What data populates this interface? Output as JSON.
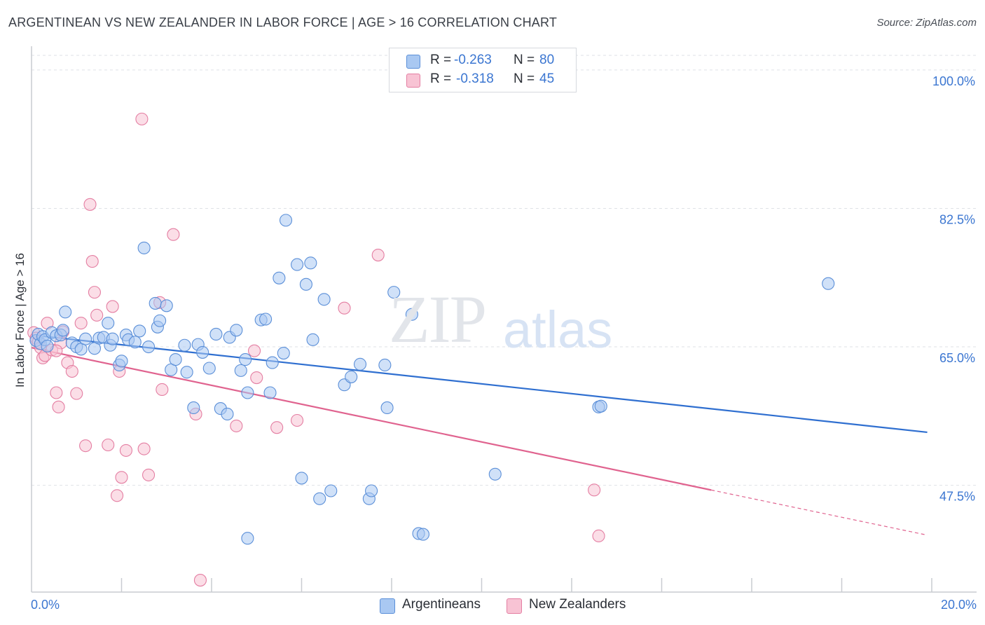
{
  "header": {
    "title": "ARGENTINEAN VS NEW ZEALANDER IN LABOR FORCE | AGE > 16 CORRELATION CHART",
    "source": "Source: ZipAtlas.com"
  },
  "watermark": {
    "zip": "ZIP",
    "atlas": "atlas"
  },
  "legend": {
    "rows": [
      {
        "r_label": "R =",
        "r_value": "-0.263",
        "n_label": "N =",
        "n_value": "80",
        "color": "#a9c8f2",
        "border": "#5b8fd8"
      },
      {
        "r_label": "R =",
        "r_value": "-0.318",
        "n_label": "N =",
        "n_value": "45",
        "color": "#f8c3d4",
        "border": "#e47ea2"
      }
    ]
  },
  "bottom_legend": {
    "items": [
      {
        "label": "Argentineans",
        "color": "#a9c8f2",
        "border": "#5b8fd8"
      },
      {
        "label": "New Zealanders",
        "color": "#f8c3d4",
        "border": "#e47ea2"
      }
    ]
  },
  "chart_data": {
    "type": "scatter",
    "title": "ARGENTINEAN VS NEW ZEALANDER IN LABOR FORCE | AGE > 16 CORRELATION CHART",
    "xlabel": "",
    "ylabel": "In Labor Force | Age > 16",
    "xlim": [
      0,
      20
    ],
    "ylim": [
      34,
      103
    ],
    "x_tick_labels": [
      "0.0%",
      "20.0%"
    ],
    "y_ticks": [
      47.5,
      65.0,
      82.5,
      100.0
    ],
    "y_tick_labels": [
      "47.5%",
      "65.0%",
      "82.5%",
      "100.0%"
    ],
    "grid": true,
    "series": [
      {
        "name": "Argentineans",
        "color": "#5b8fd8",
        "fill": "#a9c8f2",
        "trend": {
          "x": [
            0.0,
            19.9
          ],
          "y": [
            66.5,
            54.2
          ],
          "color": "#2f6fd0"
        },
        "points": [
          [
            0.1,
            65.8
          ],
          [
            0.15,
            66.6
          ],
          [
            0.2,
            65.4
          ],
          [
            0.25,
            66.3
          ],
          [
            0.3,
            65.9
          ],
          [
            0.35,
            65.1
          ],
          [
            0.45,
            66.8
          ],
          [
            0.55,
            66.4
          ],
          [
            0.65,
            66.5
          ],
          [
            0.7,
            67.1
          ],
          [
            0.75,
            69.4
          ],
          [
            0.9,
            65.5
          ],
          [
            1.0,
            65.0
          ],
          [
            1.1,
            64.7
          ],
          [
            1.2,
            66.0
          ],
          [
            1.4,
            64.8
          ],
          [
            1.5,
            66.1
          ],
          [
            1.6,
            66.2
          ],
          [
            1.7,
            68.0
          ],
          [
            1.75,
            65.2
          ],
          [
            1.8,
            66.0
          ],
          [
            1.95,
            62.7
          ],
          [
            2.0,
            63.2
          ],
          [
            2.1,
            66.5
          ],
          [
            2.15,
            65.9
          ],
          [
            2.3,
            65.6
          ],
          [
            2.4,
            67.0
          ],
          [
            2.5,
            77.5
          ],
          [
            2.6,
            65.0
          ],
          [
            2.75,
            70.5
          ],
          [
            2.8,
            67.5
          ],
          [
            2.85,
            68.3
          ],
          [
            3.0,
            70.2
          ],
          [
            3.1,
            62.1
          ],
          [
            3.2,
            63.4
          ],
          [
            3.4,
            65.2
          ],
          [
            3.45,
            61.8
          ],
          [
            3.6,
            57.3
          ],
          [
            3.7,
            65.3
          ],
          [
            3.8,
            64.3
          ],
          [
            3.95,
            62.3
          ],
          [
            4.1,
            66.6
          ],
          [
            4.2,
            57.2
          ],
          [
            4.35,
            56.5
          ],
          [
            4.4,
            66.2
          ],
          [
            4.55,
            67.1
          ],
          [
            4.65,
            62.0
          ],
          [
            4.75,
            63.4
          ],
          [
            4.8,
            59.2
          ],
          [
            5.1,
            68.4
          ],
          [
            5.2,
            68.5
          ],
          [
            5.3,
            59.2
          ],
          [
            5.35,
            63.0
          ],
          [
            5.5,
            73.7
          ],
          [
            5.6,
            64.2
          ],
          [
            5.65,
            81.0
          ],
          [
            5.9,
            75.4
          ],
          [
            6.0,
            48.4
          ],
          [
            6.1,
            72.9
          ],
          [
            6.2,
            75.6
          ],
          [
            6.25,
            65.9
          ],
          [
            6.4,
            45.8
          ],
          [
            6.5,
            71.0
          ],
          [
            6.65,
            46.8
          ],
          [
            6.95,
            60.2
          ],
          [
            7.1,
            61.2
          ],
          [
            7.3,
            62.8
          ],
          [
            7.5,
            45.8
          ],
          [
            7.55,
            46.8
          ],
          [
            7.85,
            62.7
          ],
          [
            7.9,
            57.3
          ],
          [
            8.05,
            71.9
          ],
          [
            8.45,
            69.1
          ],
          [
            8.6,
            41.4
          ],
          [
            8.7,
            41.3
          ],
          [
            10.3,
            48.9
          ],
          [
            12.6,
            57.4
          ],
          [
            12.65,
            57.5
          ],
          [
            17.7,
            73.0
          ],
          [
            4.8,
            40.8
          ]
        ]
      },
      {
        "name": "New Zealanders",
        "color": "#e47ea2",
        "fill": "#f8c3d4",
        "trend": {
          "x": [
            0.0,
            15.1
          ],
          "y": [
            64.9,
            46.9
          ],
          "color": "#e0638f",
          "dashed_extension": {
            "x": [
              15.1,
              19.9
            ],
            "y": [
              46.9,
              41.2
            ]
          }
        },
        "points": [
          [
            0.05,
            66.8
          ],
          [
            0.1,
            66.1
          ],
          [
            0.15,
            65.6
          ],
          [
            0.2,
            64.9
          ],
          [
            0.25,
            63.6
          ],
          [
            0.3,
            63.9
          ],
          [
            0.35,
            68.0
          ],
          [
            0.45,
            64.6
          ],
          [
            0.55,
            59.2
          ],
          [
            0.6,
            57.4
          ],
          [
            0.65,
            65.5
          ],
          [
            0.7,
            66.9
          ],
          [
            0.8,
            63.0
          ],
          [
            0.9,
            61.9
          ],
          [
            1.0,
            59.1
          ],
          [
            1.1,
            68.0
          ],
          [
            1.2,
            52.5
          ],
          [
            1.3,
            83.0
          ],
          [
            1.35,
            75.8
          ],
          [
            1.4,
            71.9
          ],
          [
            1.45,
            69.0
          ],
          [
            1.7,
            52.6
          ],
          [
            1.8,
            70.1
          ],
          [
            1.9,
            46.2
          ],
          [
            1.95,
            61.9
          ],
          [
            2.0,
            48.5
          ],
          [
            2.1,
            51.9
          ],
          [
            2.45,
            93.8
          ],
          [
            2.5,
            52.1
          ],
          [
            2.6,
            48.8
          ],
          [
            2.85,
            70.6
          ],
          [
            2.9,
            59.6
          ],
          [
            3.15,
            79.2
          ],
          [
            3.65,
            56.5
          ],
          [
            3.75,
            35.5
          ],
          [
            4.55,
            55.0
          ],
          [
            4.95,
            64.5
          ],
          [
            5.0,
            61.1
          ],
          [
            5.45,
            54.8
          ],
          [
            5.9,
            55.7
          ],
          [
            6.95,
            69.9
          ],
          [
            7.7,
            76.6
          ],
          [
            12.5,
            46.9
          ],
          [
            12.6,
            41.1
          ],
          [
            0.55,
            64.5
          ]
        ]
      }
    ]
  }
}
